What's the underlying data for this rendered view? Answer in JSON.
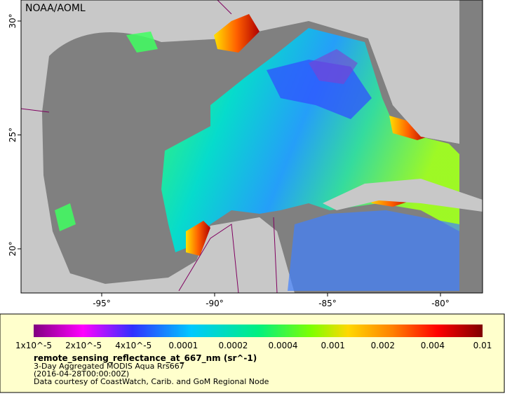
{
  "map": {
    "credit": "NOAA/AOML",
    "lon_ticks": [
      "-95°",
      "-90°",
      "-85°",
      "-80°"
    ],
    "lat_ticks": [
      "30°",
      "25°",
      "20°"
    ]
  },
  "legend": {
    "colorbar_labels": [
      "1x10^-5",
      "2x10^-5",
      "4x10^-5",
      "0.0001",
      "0.0002",
      "0.0004",
      "0.001",
      "0.002",
      "0.004",
      "0.01"
    ],
    "variable": "remote_sensing_reflectance_at_667_nm (sr^-1)",
    "description": "3-Day Aggregated MODIS Aqua Rrs667",
    "time": "(2016-04-28T00:00:00Z)",
    "source": "Data courtesy of CoastWatch, Carib. and GoM Regional Node"
  }
}
